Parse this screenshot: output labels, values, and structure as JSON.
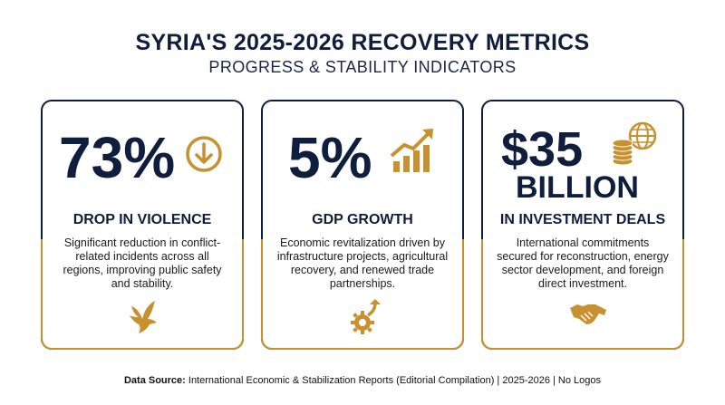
{
  "header": {
    "title": "SYRIA'S 2025-2026 RECOVERY METRICS",
    "subtitle": "PROGRESS & STABILITY INDICATORS"
  },
  "cards": [
    {
      "value": "73%",
      "heading": "DROP IN VIOLENCE",
      "description": "Significant reduction in conflict-related incidents across all regions, improving public safety and stability.",
      "top_icon": "down-arrow-circle-icon",
      "bottom_icon": "dove-icon"
    },
    {
      "value": "5%",
      "heading": "GDP GROWTH",
      "description": "Economic revitalization driven by infrastructure projects, agricultural recovery, and renewed trade partnerships.",
      "top_icon": "growth-chart-icon",
      "bottom_icon": "gear-arrow-icon"
    },
    {
      "value": "$35",
      "value_line2": "BILLION",
      "heading": "IN INVESTMENT DEALS",
      "description": "International commitments secured for reconstruction, energy sector development, and foreign direct investment.",
      "top_icon": "coins-globe-icon",
      "bottom_icon": "handshake-icon"
    }
  ],
  "footer": {
    "source_label": "Data Source:",
    "source_text": " International Economic & Stabilization Reports (Editorial Compilation) | 2025-2026 | No Logos"
  },
  "colors": {
    "navy": "#0f1e3d",
    "gold": "#c8912f"
  }
}
